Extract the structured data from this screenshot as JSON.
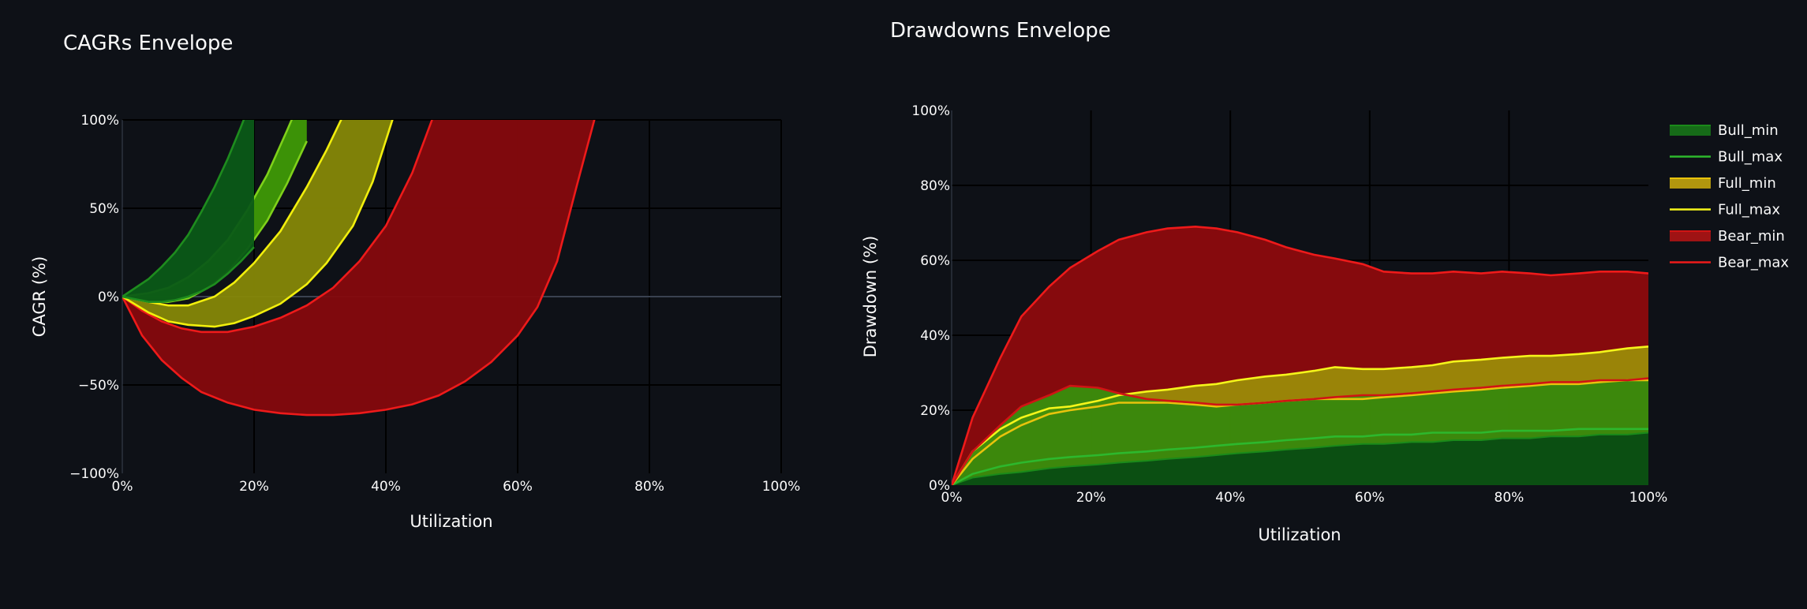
{
  "chart_data": [
    {
      "type": "area",
      "title": "CAGRs Envelope",
      "xlabel": "Utilization",
      "ylabel": "CAGR (%)",
      "xlim": [
        0,
        100
      ],
      "ylim": [
        -100,
        100
      ],
      "x_ticks": [
        "0%",
        "20%",
        "40%",
        "60%",
        "80%",
        "100%"
      ],
      "y_ticks": [
        "−100%",
        "−50%",
        "0%",
        "50%",
        "100%"
      ],
      "grid": true,
      "legend": "none",
      "bands": [
        {
          "color": "#0b5a17",
          "line": "#1e8c1e",
          "x": [
            0,
            4,
            6,
            8,
            10,
            12,
            14,
            16,
            18,
            20
          ],
          "upper": [
            0,
            10,
            17,
            25,
            35,
            48,
            62,
            78,
            96,
            115
          ],
          "lower": [
            0,
            -3,
            -3,
            -2,
            0,
            3,
            7,
            13,
            20,
            28
          ]
        },
        {
          "color": "#3f9a06",
          "line": "#7fd11a",
          "x": [
            0,
            4,
            7,
            10,
            13,
            16,
            19,
            22,
            25,
            28
          ],
          "upper": [
            0,
            2,
            5,
            11,
            20,
            32,
            49,
            69,
            94,
            120
          ],
          "lower": [
            0,
            -3,
            -3,
            -1,
            5,
            14,
            27,
            43,
            64,
            88
          ]
        },
        {
          "color": "#868807",
          "line": "#f2ef0c",
          "x": [
            0,
            4,
            7,
            10,
            14,
            17,
            20,
            24,
            28,
            31,
            35,
            38,
            41,
            43
          ],
          "upper": [
            0,
            -3,
            -5,
            -5,
            0,
            8,
            19,
            37,
            62,
            83,
            114,
            140,
            160,
            170
          ],
          "lower": [
            0,
            -9,
            -14,
            -16,
            -17,
            -15,
            -11,
            -4,
            7,
            19,
            40,
            65,
            100,
            120
          ]
        },
        {
          "color": "#860a0d",
          "line": "#ee1a1a",
          "x": [
            0,
            3,
            6,
            9,
            12,
            16,
            20,
            24,
            28,
            32,
            36,
            40,
            44,
            48,
            52,
            56,
            60,
            63,
            66,
            69,
            72
          ],
          "upper": [
            0,
            -8,
            -14,
            -18,
            -20,
            -20,
            -17,
            -12,
            -5,
            5,
            20,
            40,
            70,
            110,
            150,
            190,
            230,
            260,
            290,
            320,
            350
          ],
          "lower": [
            0,
            -22,
            -36,
            -46,
            -54,
            -60,
            -64,
            -66,
            -67,
            -67,
            -66,
            -64,
            -61,
            -56,
            -48,
            -37,
            -22,
            -6,
            20,
            63,
            105
          ]
        }
      ]
    },
    {
      "type": "area",
      "title": "Drawdowns Envelope",
      "xlabel": "Utilization",
      "ylabel": "Drawdown (%)",
      "xlim": [
        0,
        100
      ],
      "ylim": [
        0,
        100
      ],
      "x_ticks": [
        "0%",
        "20%",
        "40%",
        "60%",
        "80%",
        "100%"
      ],
      "y_ticks": [
        "0%",
        "20%",
        "40%",
        "60%",
        "80%",
        "100%"
      ],
      "grid": true,
      "legend": "top-right",
      "x": [
        0,
        3,
        7,
        10,
        14,
        17,
        21,
        24,
        28,
        31,
        35,
        38,
        41,
        45,
        48,
        52,
        55,
        59,
        62,
        66,
        69,
        72,
        76,
        79,
        83,
        86,
        90,
        93,
        97,
        100
      ],
      "series": [
        {
          "name": "Bull_min",
          "color": "#1a8a1a",
          "values": [
            0,
            2,
            3,
            3.5,
            4.5,
            5,
            5.5,
            6,
            6.5,
            7,
            7.5,
            8,
            8.5,
            9,
            9.5,
            10,
            10.5,
            11,
            11,
            11.5,
            11.5,
            12,
            12,
            12.5,
            12.5,
            13,
            13,
            13.5,
            13.5,
            14
          ]
        },
        {
          "name": "Bull_max",
          "color": "#2db82d",
          "values": [
            0,
            3,
            5,
            6,
            7,
            7.5,
            8,
            8.5,
            9,
            9.5,
            10,
            10.5,
            11,
            11.5,
            12,
            12.5,
            13,
            13,
            13.5,
            13.5,
            14,
            14,
            14,
            14.5,
            14.5,
            14.5,
            15,
            15,
            15,
            15
          ]
        },
        {
          "name": "Full_min",
          "color": "#e8c30c",
          "values": [
            0,
            7,
            13,
            16,
            19,
            20,
            21,
            22,
            22,
            22,
            21.5,
            21,
            21.5,
            22,
            22.5,
            23,
            23,
            23,
            23.5,
            24,
            24.5,
            25,
            25.5,
            26,
            26.5,
            27,
            27,
            27.5,
            28,
            28
          ]
        },
        {
          "name": "Full_max",
          "color": "#f5f51a",
          "values": [
            0,
            9,
            15,
            18,
            20.5,
            21,
            22.5,
            24,
            25,
            25.5,
            26.5,
            27,
            28,
            29,
            29.5,
            30.5,
            31.5,
            31,
            31,
            31.5,
            32,
            33,
            33.5,
            34,
            34.5,
            34.5,
            35,
            35.5,
            36.5,
            37
          ]
        },
        {
          "name": "Bear_min",
          "color": "#d01414",
          "values": [
            0,
            9,
            16,
            21,
            24,
            26.5,
            26,
            24.5,
            23,
            22.5,
            22,
            21.5,
            21.5,
            22,
            22.5,
            23,
            23.5,
            24,
            24,
            24.5,
            25,
            25.5,
            26,
            26.5,
            27,
            27.5,
            27.5,
            28,
            28,
            28.5
          ]
        },
        {
          "name": "Bear_max",
          "color": "#ee1a1a",
          "values": [
            0,
            18,
            34,
            45,
            53,
            58,
            62.5,
            65.5,
            67.5,
            68.5,
            69,
            68.5,
            67.5,
            65.5,
            63.5,
            61.5,
            60.5,
            59,
            57,
            56.5,
            56.5,
            57,
            56.5,
            57,
            56.5,
            56,
            56.5,
            57,
            57,
            56.5
          ]
        }
      ]
    }
  ]
}
